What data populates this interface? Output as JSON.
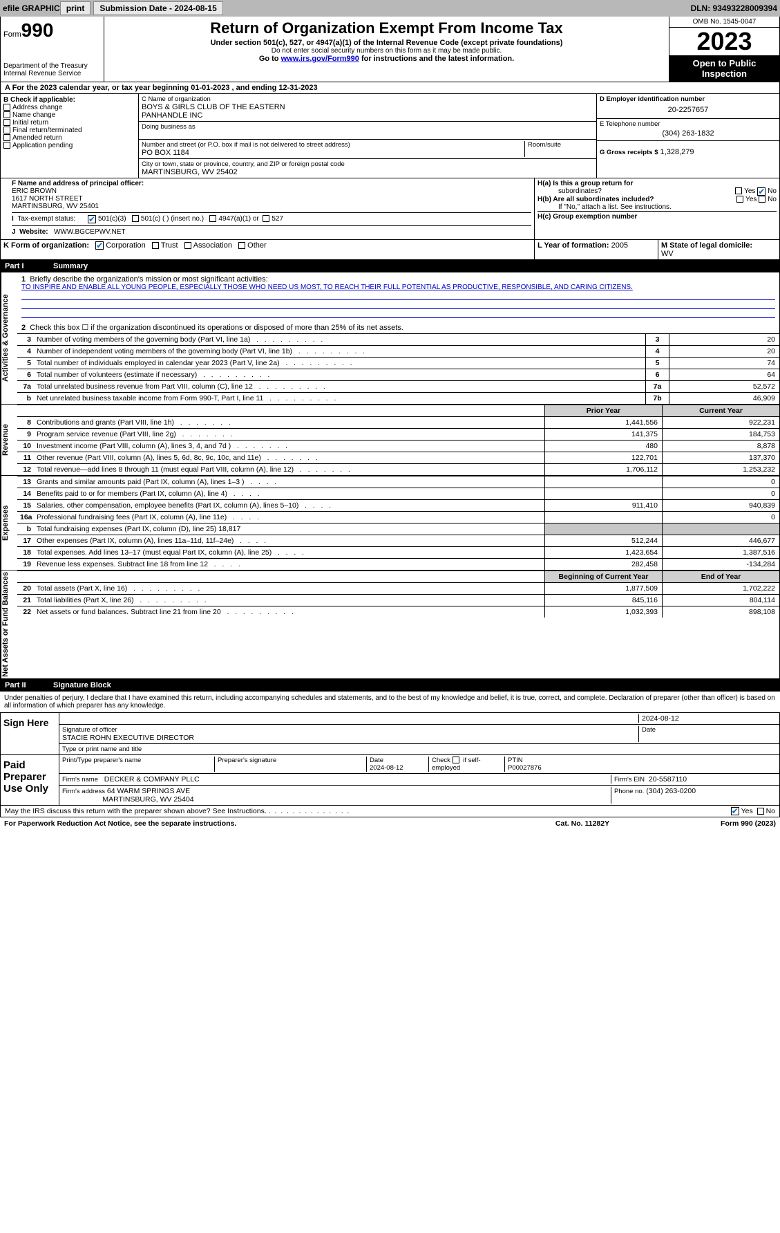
{
  "topbar": {
    "efile": "efile GRAPHIC",
    "print": "print",
    "submission": "Submission Date - 2024-08-15",
    "dln": "DLN: 93493228009394"
  },
  "header": {
    "form_word": "Form",
    "form_num": "990",
    "dept1": "Department of the Treasury",
    "dept2": "Internal Revenue Service",
    "title": "Return of Organization Exempt From Income Tax",
    "sub1": "Under section 501(c), 527, or 4947(a)(1) of the Internal Revenue Code (except private foundations)",
    "sub2": "Do not enter social security numbers on this form as it may be made public.",
    "sub3a": "Go to ",
    "sub3_link": "www.irs.gov/Form990",
    "sub3b": " for instructions and the latest information.",
    "omb": "OMB No. 1545-0047",
    "year": "2023",
    "open": "Open to Public Inspection"
  },
  "A": {
    "text": "For the 2023 calendar year, or tax year beginning 01-01-2023     , and ending 12-31-2023"
  },
  "B": {
    "label": "B Check if applicable:",
    "items": [
      "Address change",
      "Name change",
      "Initial return",
      "Final return/terminated",
      "Amended return",
      "Application pending"
    ]
  },
  "C": {
    "name_label": "C Name of organization",
    "name1": "BOYS & GIRLS CLUB OF THE EASTERN",
    "name2": "PANHANDLE INC",
    "dba_label": "Doing business as",
    "addr_label": "Number and street (or P.O. box if mail is not delivered to street address)",
    "room_label": "Room/suite",
    "addr": "PO BOX 1184",
    "city_label": "City or town, state or province, country, and ZIP or foreign postal code",
    "city": "MARTINSBURG, WV  25402"
  },
  "D": {
    "label": "D Employer identification number",
    "value": "20-2257657"
  },
  "E": {
    "label": "E Telephone number",
    "value": "(304) 263-1832"
  },
  "G": {
    "label": "G Gross receipts $",
    "value": "1,328,279"
  },
  "F": {
    "label": "F  Name and address of principal officer:",
    "name": "ERIC BROWN",
    "street": "1617 NORTH STREET",
    "city": "MARTINSBURG, WV  25401"
  },
  "H": {
    "a1": "H(a)  Is this a group return for",
    "a2": "subordinates?",
    "b1": "H(b)  Are all subordinates included?",
    "b2": "If \"No,\" attach a list. See instructions.",
    "c": "H(c)  Group exemption number",
    "yes": "Yes",
    "no": "No"
  },
  "I": {
    "label": "Tax-exempt status:",
    "opt1": "501(c)(3)",
    "opt2": "501(c) (  ) (insert no.)",
    "opt3": "4947(a)(1) or",
    "opt4": "527"
  },
  "J": {
    "label": "Website:",
    "value": "WWW.BGCEPWV.NET"
  },
  "K": {
    "label": "K Form of organization:",
    "opts": [
      "Corporation",
      "Trust",
      "Association",
      "Other"
    ]
  },
  "L": {
    "label": "L Year of formation:",
    "value": "2005"
  },
  "M": {
    "label": "M State of legal domicile:",
    "value": "WV"
  },
  "part1": {
    "label": "Part I",
    "title": "Summary"
  },
  "part2": {
    "label": "Part II",
    "title": "Signature Block"
  },
  "vert": {
    "gov": "Activities & Governance",
    "rev": "Revenue",
    "exp": "Expenses",
    "net": "Net Assets or Fund Balances"
  },
  "summary": {
    "line1": "Briefly describe the organization's mission or most significant activities:",
    "mission": "TO INSPIRE AND ENABLE ALL YOUNG PEOPLE, ESPECIALLY THOSE WHO NEED US MOST, TO REACH THEIR FULL POTENTIAL AS PRODUCTIVE, RESPONSIBLE, AND CARING CITIZENS.",
    "line2": "Check this box ☐ if the organization discontinued its operations or disposed of more than 25% of its net assets.",
    "rows_gov": [
      {
        "n": "3",
        "t": "Number of voting members of the governing body (Part VI, line 1a)",
        "l": "3",
        "v": "20"
      },
      {
        "n": "4",
        "t": "Number of independent voting members of the governing body (Part VI, line 1b)",
        "l": "4",
        "v": "20"
      },
      {
        "n": "5",
        "t": "Total number of individuals employed in calendar year 2023 (Part V, line 2a)",
        "l": "5",
        "v": "74"
      },
      {
        "n": "6",
        "t": "Total number of volunteers (estimate if necessary)",
        "l": "6",
        "v": "64"
      },
      {
        "n": "7a",
        "t": "Total unrelated business revenue from Part VIII, column (C), line 12",
        "l": "7a",
        "v": "52,572"
      },
      {
        "n": "b",
        "t": "Net unrelated business taxable income from Form 990-T, Part I, line 11",
        "l": "7b",
        "v": "46,909"
      }
    ],
    "hdr_prior": "Prior Year",
    "hdr_curr": "Current Year",
    "rows_rev": [
      {
        "n": "8",
        "t": "Contributions and grants (Part VIII, line 1h)",
        "p": "1,441,556",
        "c": "922,231"
      },
      {
        "n": "9",
        "t": "Program service revenue (Part VIII, line 2g)",
        "p": "141,375",
        "c": "184,753"
      },
      {
        "n": "10",
        "t": "Investment income (Part VIII, column (A), lines 3, 4, and 7d )",
        "p": "480",
        "c": "8,878"
      },
      {
        "n": "11",
        "t": "Other revenue (Part VIII, column (A), lines 5, 6d, 8c, 9c, 10c, and 11e)",
        "p": "122,701",
        "c": "137,370"
      },
      {
        "n": "12",
        "t": "Total revenue—add lines 8 through 11 (must equal Part VIII, column (A), line 12)",
        "p": "1,706,112",
        "c": "1,253,232"
      }
    ],
    "rows_exp": [
      {
        "n": "13",
        "t": "Grants and similar amounts paid (Part IX, column (A), lines 1–3 )",
        "p": "",
        "c": "0"
      },
      {
        "n": "14",
        "t": "Benefits paid to or for members (Part IX, column (A), line 4)",
        "p": "",
        "c": "0"
      },
      {
        "n": "15",
        "t": "Salaries, other compensation, employee benefits (Part IX, column (A), lines 5–10)",
        "p": "911,410",
        "c": "940,839"
      },
      {
        "n": "16a",
        "t": "Professional fundraising fees (Part IX, column (A), line 11e)",
        "p": "",
        "c": "0"
      },
      {
        "n": "b",
        "t": "Total fundraising expenses (Part IX, column (D), line 25) 18,817",
        "shade": true
      },
      {
        "n": "17",
        "t": "Other expenses (Part IX, column (A), lines 11a–11d, 11f–24e)",
        "p": "512,244",
        "c": "446,677"
      },
      {
        "n": "18",
        "t": "Total expenses. Add lines 13–17 (must equal Part IX, column (A), line 25)",
        "p": "1,423,654",
        "c": "1,387,516"
      },
      {
        "n": "19",
        "t": "Revenue less expenses. Subtract line 18 from line 12",
        "p": "282,458",
        "c": "-134,284"
      }
    ],
    "hdr_begin": "Beginning of Current Year",
    "hdr_end": "End of Year",
    "rows_net": [
      {
        "n": "20",
        "t": "Total assets (Part X, line 16)",
        "p": "1,877,509",
        "c": "1,702,222"
      },
      {
        "n": "21",
        "t": "Total liabilities (Part X, line 26)",
        "p": "845,116",
        "c": "804,114"
      },
      {
        "n": "22",
        "t": "Net assets or fund balances. Subtract line 21 from line 20",
        "p": "1,032,393",
        "c": "898,108"
      }
    ]
  },
  "penalties": "Under penalties of perjury, I declare that I have examined this return, including accompanying schedules and statements, and to the best of my knowledge and belief, it is true, correct, and complete. Declaration of preparer (other than officer) is based on all information of which preparer has any knowledge.",
  "sign": {
    "here": "Sign Here",
    "sig_officer": "Signature of officer",
    "officer": "STACIE ROHN  EXECUTIVE DIRECTOR",
    "title_label": "Type or print name and title",
    "date_label": "Date",
    "date_val": "2024-08-12"
  },
  "paid": {
    "label": "Paid Preparer Use Only",
    "col1": "Print/Type preparer's name",
    "col2": "Preparer's signature",
    "col3": "Date",
    "date": "2024-08-12",
    "col4_a": "Check",
    "col4_b": "if self-employed",
    "col5": "PTIN",
    "ptin": "P00027876",
    "firm_name_label": "Firm's name",
    "firm_name": "DECKER & COMPANY PLLC",
    "firm_ein_label": "Firm's EIN",
    "firm_ein": "20-5587110",
    "firm_addr_label": "Firm's address",
    "firm_addr1": "64 WARM SPRINGS AVE",
    "firm_addr2": "MARTINSBURG, WV  25404",
    "phone_label": "Phone no.",
    "phone": "(304) 263-0200"
  },
  "discuss": {
    "text": "May the IRS discuss this return with the preparer shown above? See Instructions.",
    "yes": "Yes",
    "no": "No"
  },
  "footer": {
    "left": "For Paperwork Reduction Act Notice, see the separate instructions.",
    "mid": "Cat. No. 11282Y",
    "right": "Form 990 (2023)"
  }
}
